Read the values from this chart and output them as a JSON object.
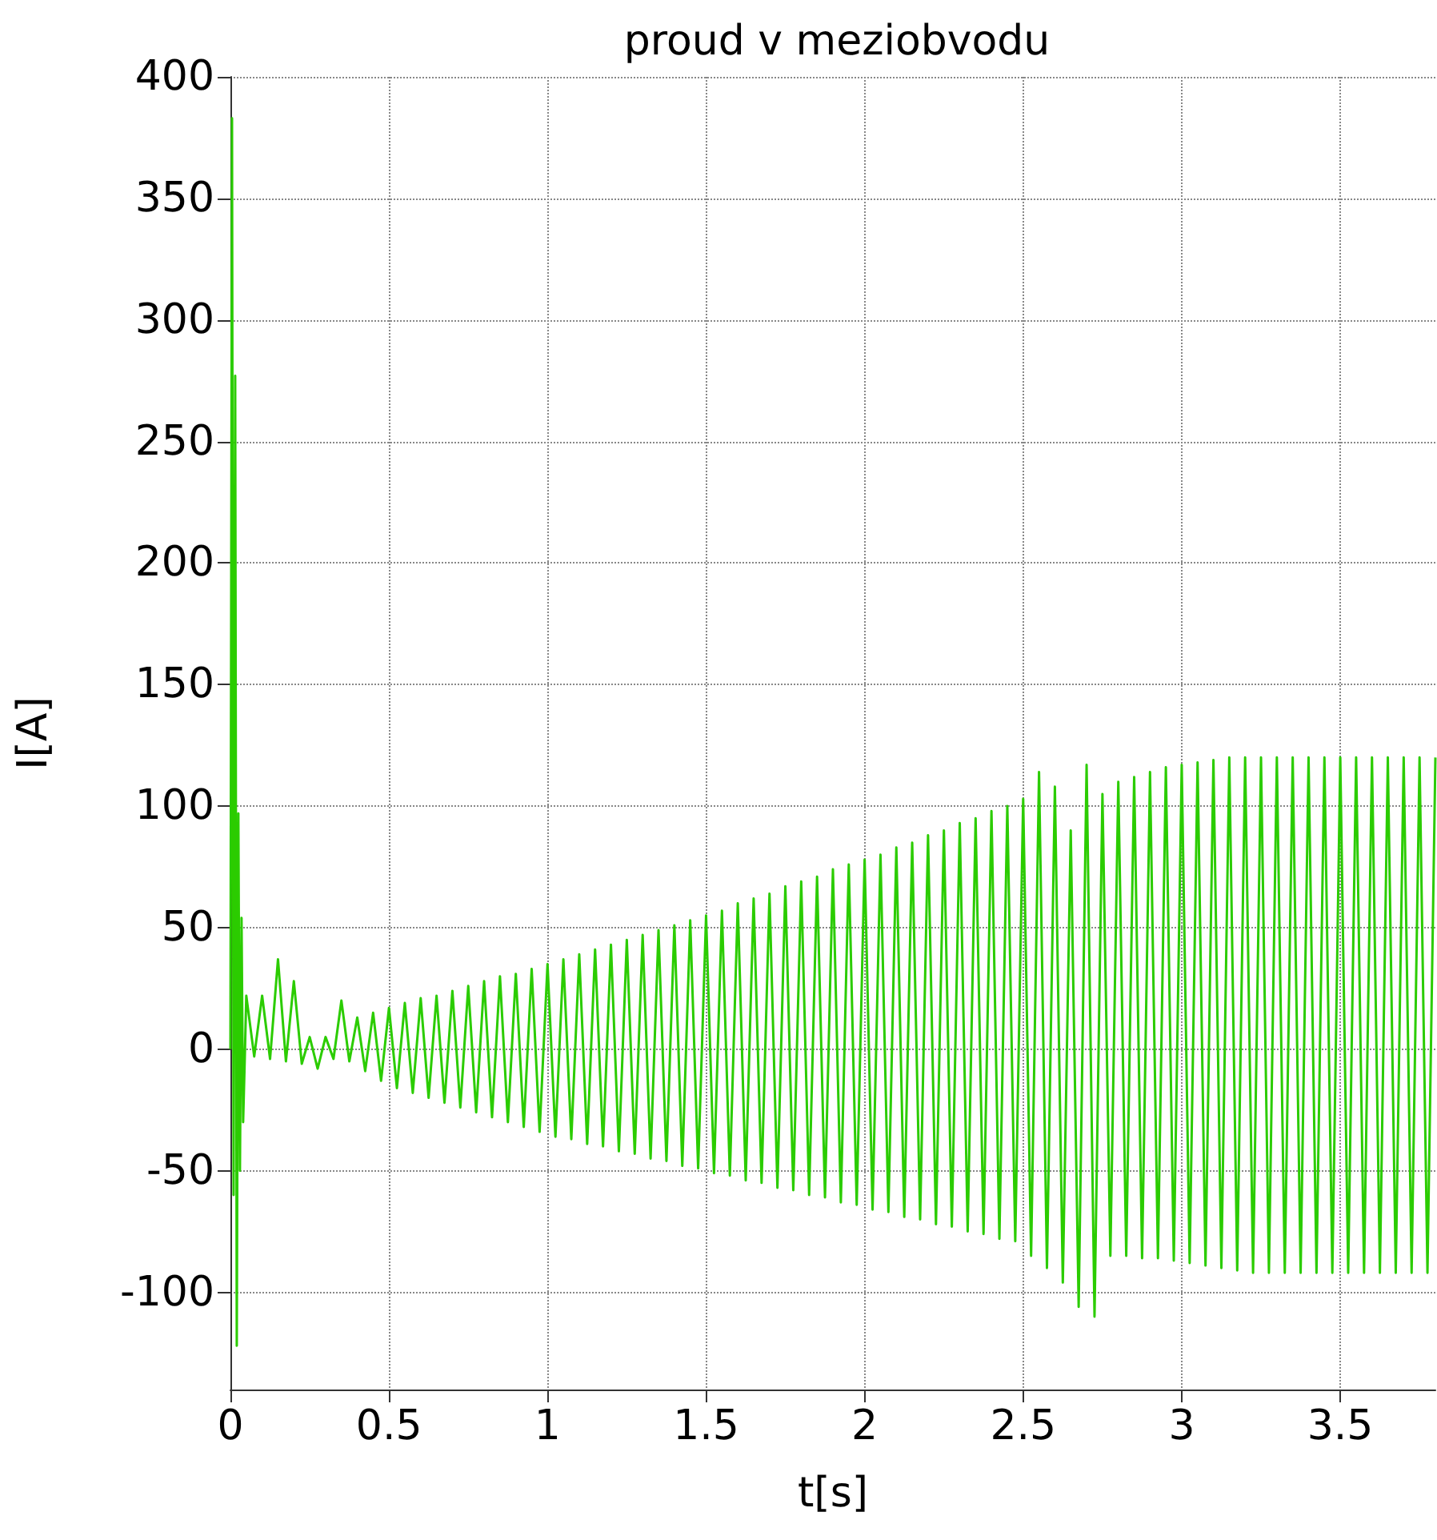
{
  "chart_data": {
    "type": "line",
    "title": "proud v meziobvodu",
    "xlabel": "t[s]",
    "ylabel": "I[A]",
    "xlim": [
      0,
      3.8
    ],
    "xticks": [
      0,
      0.5,
      1,
      1.5,
      2,
      2.5,
      3,
      3.5
    ],
    "ylim": [
      -140,
      400
    ],
    "yticks": [
      -100,
      -50,
      0,
      50,
      100,
      150,
      200,
      250,
      300,
      350,
      400
    ],
    "grid": true,
    "marker": "none",
    "x": [
      0,
      0.005,
      0.01,
      0.015,
      0.02,
      0.025,
      0.03,
      0.035,
      0.04,
      0.045,
      0.05,
      0.075,
      0.1,
      0.125,
      0.15,
      0.175,
      0.2,
      0.225,
      0.25,
      0.275,
      0.3,
      0.325,
      0.35,
      0.375,
      0.4,
      0.425,
      0.45,
      0.475,
      0.5,
      0.525,
      0.55,
      0.575,
      0.6,
      0.625,
      0.65,
      0.675,
      0.7,
      0.725,
      0.75,
      0.775,
      0.8,
      0.825,
      0.85,
      0.875,
      0.9,
      0.925,
      0.95,
      0.975,
      1.0,
      1.025,
      1.05,
      1.075,
      1.1,
      1.125,
      1.15,
      1.175,
      1.2,
      1.225,
      1.25,
      1.275,
      1.3,
      1.325,
      1.35,
      1.375,
      1.4,
      1.425,
      1.45,
      1.475,
      1.5,
      1.525,
      1.55,
      1.575,
      1.6,
      1.625,
      1.65,
      1.675,
      1.7,
      1.725,
      1.75,
      1.775,
      1.8,
      1.825,
      1.85,
      1.875,
      1.9,
      1.925,
      1.95,
      1.975,
      2.0,
      2.025,
      2.05,
      2.075,
      2.1,
      2.125,
      2.15,
      2.175,
      2.2,
      2.225,
      2.25,
      2.275,
      2.3,
      2.325,
      2.35,
      2.375,
      2.4,
      2.425,
      2.45,
      2.475,
      2.5,
      2.525,
      2.55,
      2.575,
      2.6,
      2.625,
      2.65,
      2.675,
      2.7,
      2.725,
      2.75,
      2.775,
      2.8,
      2.825,
      2.85,
      2.875,
      2.9,
      2.925,
      2.95,
      2.975,
      3.0,
      3.025,
      3.05,
      3.075,
      3.1,
      3.125,
      3.15,
      3.175,
      3.2,
      3.225,
      3.25,
      3.275,
      3.3,
      3.325,
      3.35,
      3.375,
      3.4,
      3.425,
      3.45,
      3.475,
      3.5,
      3.525,
      3.55,
      3.575,
      3.6,
      3.625,
      3.65,
      3.675,
      3.7,
      3.725,
      3.75,
      3.775,
      3.8
    ],
    "series": [
      {
        "color": "#2bcc00",
        "values": [
          0,
          383,
          -60,
          277,
          -122,
          97,
          -50,
          54,
          -30,
          -5,
          22,
          -3,
          22,
          -4,
          37,
          -5,
          28,
          -6,
          5,
          -8,
          5,
          -4,
          20,
          -5,
          13,
          -9,
          15,
          -13,
          17,
          -16,
          19,
          -18,
          21,
          -20,
          22,
          -22,
          24,
          -24,
          26,
          -26,
          28,
          -28,
          30,
          -30,
          31,
          -32,
          33,
          -34,
          35,
          -36,
          37,
          -37,
          39,
          -39,
          41,
          -40,
          43,
          -42,
          45,
          -43,
          47,
          -45,
          49,
          -46,
          51,
          -48,
          53,
          -49,
          55,
          -51,
          57,
          -52,
          60,
          -54,
          62,
          -55,
          64,
          -57,
          67,
          -58,
          69,
          -60,
          71,
          -61,
          74,
          -63,
          76,
          -64,
          78,
          -66,
          80,
          -67,
          83,
          -69,
          85,
          -70,
          88,
          -72,
          90,
          -73,
          93,
          -75,
          95,
          -76,
          98,
          -78,
          100,
          -79,
          103,
          -85,
          114,
          -90,
          108,
          -96,
          90,
          -106,
          117,
          -110,
          105,
          -85,
          110,
          -85,
          112,
          -86,
          114,
          -86,
          116,
          -87,
          117,
          -88,
          118,
          -89,
          119,
          -90,
          120,
          -91,
          120,
          -92,
          120,
          -92,
          120,
          -92,
          120,
          -92,
          120,
          -92,
          120,
          -92,
          120,
          -92,
          120,
          -92,
          120,
          -92,
          120,
          -92,
          120,
          -92,
          120,
          -92,
          120
        ]
      }
    ]
  }
}
